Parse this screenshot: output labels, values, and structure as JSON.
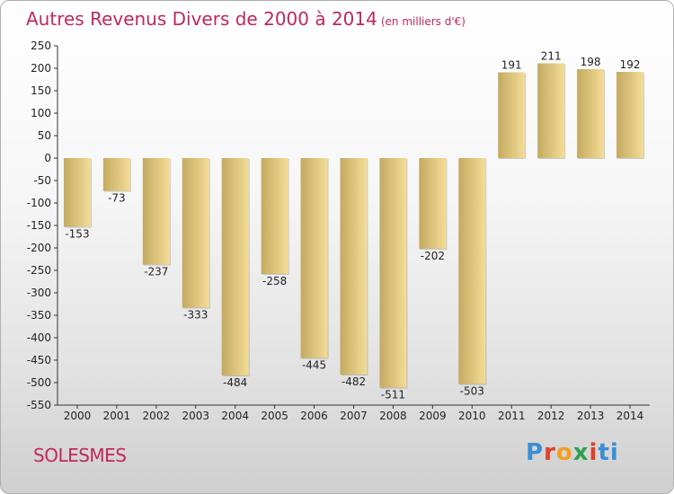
{
  "title": "Autres Revenus Divers de 2000 à 2014",
  "subtitle": "(en milliers d'€)",
  "commune": "SOLESMES",
  "logo": "Proxiti",
  "chart_data": {
    "type": "bar",
    "categories": [
      "2000",
      "2001",
      "2002",
      "2003",
      "2004",
      "2005",
      "2006",
      "2007",
      "2008",
      "2009",
      "2010",
      "2011",
      "2012",
      "2013",
      "2014"
    ],
    "values": [
      -153,
      -73,
      -237,
      -333,
      -484,
      -258,
      -445,
      -482,
      -511,
      -202,
      -503,
      191,
      211,
      198,
      192
    ],
    "ylim": [
      -550,
      250
    ],
    "yticks": [
      250,
      200,
      150,
      100,
      50,
      0,
      -50,
      -100,
      -150,
      -200,
      -250,
      -300,
      -350,
      -400,
      -450,
      -500,
      -550
    ],
    "grid": false,
    "colors": {
      "bar_light": "#f4dd98",
      "bar_dark": "#c4aa60",
      "title": "#c0285a"
    }
  }
}
